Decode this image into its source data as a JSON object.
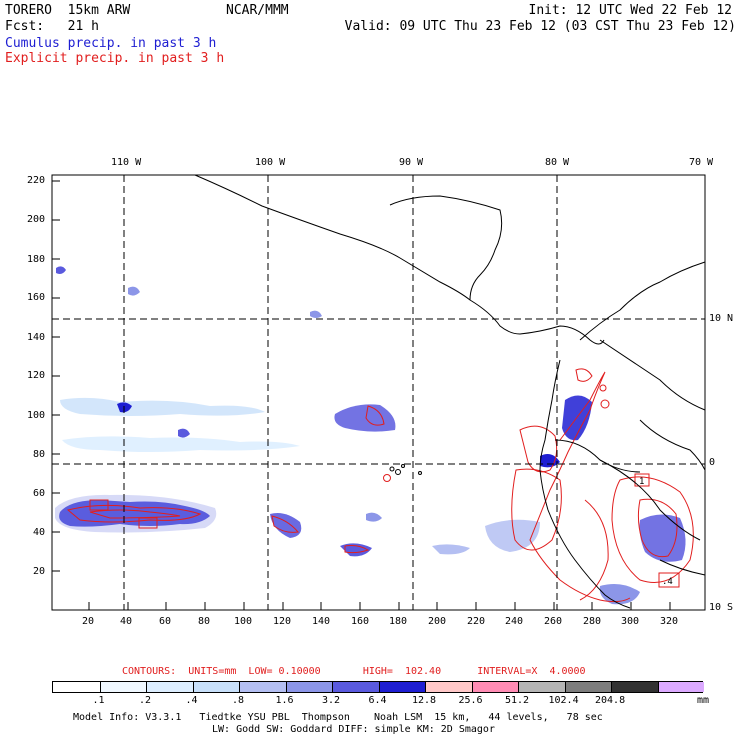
{
  "header": {
    "model": "TORERO  15km ARW",
    "center": "NCAR/MMM",
    "init": "Init: 12 UTC Wed 22 Feb 12",
    "fcst": "Fcst:   21 h",
    "valid": "Valid: 09 UTC Thu 23 Feb 12 (03 CST Thu 23 Feb 12)",
    "cumulus": "Cumulus precip. in past 3 h",
    "explicit": "Explicit precip. in past 3 h"
  },
  "colors": {
    "cumulus": "#1e1ed2",
    "explicit": "#e11e1e"
  },
  "top_lon_labels": [
    "110 W",
    "100 W",
    "90 W",
    "80 W",
    "70 W"
  ],
  "right_lat_labels": [
    "10 N",
    "0",
    "10 S"
  ],
  "y_ticks": [
    "220",
    "200",
    "180",
    "160",
    "140",
    "120",
    "100",
    "80",
    "60",
    "40",
    "20"
  ],
  "x_ticks": [
    "20",
    "40",
    "60",
    "80",
    "100",
    "120",
    "140",
    "160",
    "180",
    "200",
    "220",
    "240",
    "260",
    "280",
    "300",
    "320"
  ],
  "contour_line": {
    "label": "CONTOURS:  UNITS=mm  LOW= 0.10000       HIGH=  102.40      INTERVAL=X  4.0000"
  },
  "colorbar": {
    "colors": [
      "#ffffff",
      "#f0f8ff",
      "#ddeeff",
      "#c8e0fa",
      "#b4bff2",
      "#8c96e8",
      "#5a5ade",
      "#1e1ed2",
      "#ffc8c8",
      "#ff8cb4",
      "#b4b4b4",
      "#7d7d7d",
      "#323232",
      "#dcaaff"
    ],
    "labels": [
      ".1",
      ".2",
      ".4",
      ".8",
      "1.6",
      "3.2",
      "6.4",
      "12.8",
      "25.6",
      "51.2",
      "102.4",
      "204.8"
    ],
    "unit": "mm"
  },
  "footer": {
    "line1": "Model Info: V3.3.1   Tiedtke YSU PBL  Thompson    Noah LSM  15 km,   44 levels,   78 sec",
    "line2": "LW: Godd SW: Goddard DIFF: simple KM: 2D Smagor"
  },
  "map_labels": {
    "contour_box_1": "1",
    "contour_box_2": ".4"
  }
}
